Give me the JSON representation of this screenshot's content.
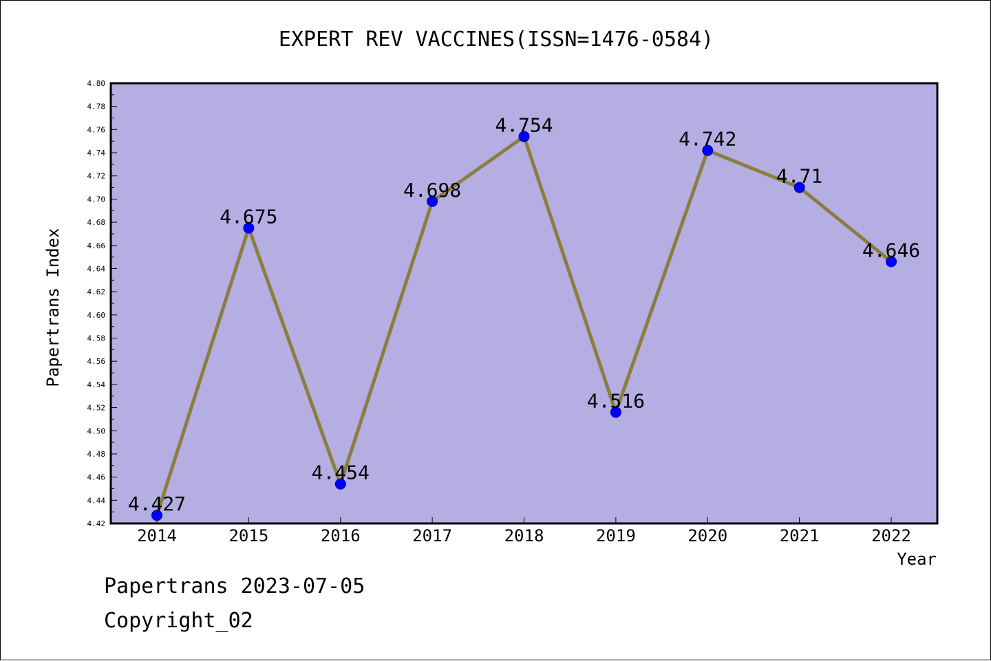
{
  "chart_data": {
    "type": "line",
    "title": "EXPERT REV VACCINES(ISSN=1476-0584)",
    "xlabel": "Year",
    "ylabel": "Papertrans Index",
    "categories": [
      "2014",
      "2015",
      "2016",
      "2017",
      "2018",
      "2019",
      "2020",
      "2021",
      "2022"
    ],
    "series": [
      {
        "values": [
          4.427,
          4.675,
          4.454,
          4.698,
          4.754,
          4.516,
          4.742,
          4.71,
          4.646
        ],
        "labels": [
          "4.427",
          "4.675",
          "4.454",
          "4.698",
          "4.754",
          "4.516",
          "4.742",
          "4.71",
          "4.646"
        ]
      }
    ],
    "ylim": [
      4.42,
      4.8
    ],
    "yticks": [
      "4.42",
      "4.44",
      "4.46",
      "4.48",
      "4.50",
      "4.52",
      "4.54",
      "4.56",
      "4.58",
      "4.60",
      "4.62",
      "4.64",
      "4.66",
      "4.68",
      "4.70",
      "4.72",
      "4.74",
      "4.76",
      "4.78",
      "4.80"
    ],
    "grid": false,
    "colors": {
      "plot_background": "#b4aee2",
      "line": "#8b7d3e",
      "marker": "#0000ff",
      "axis": "#000000"
    }
  },
  "footer": {
    "stamp": "Papertrans 2023-07-05",
    "copyright": "Copyright_02"
  }
}
